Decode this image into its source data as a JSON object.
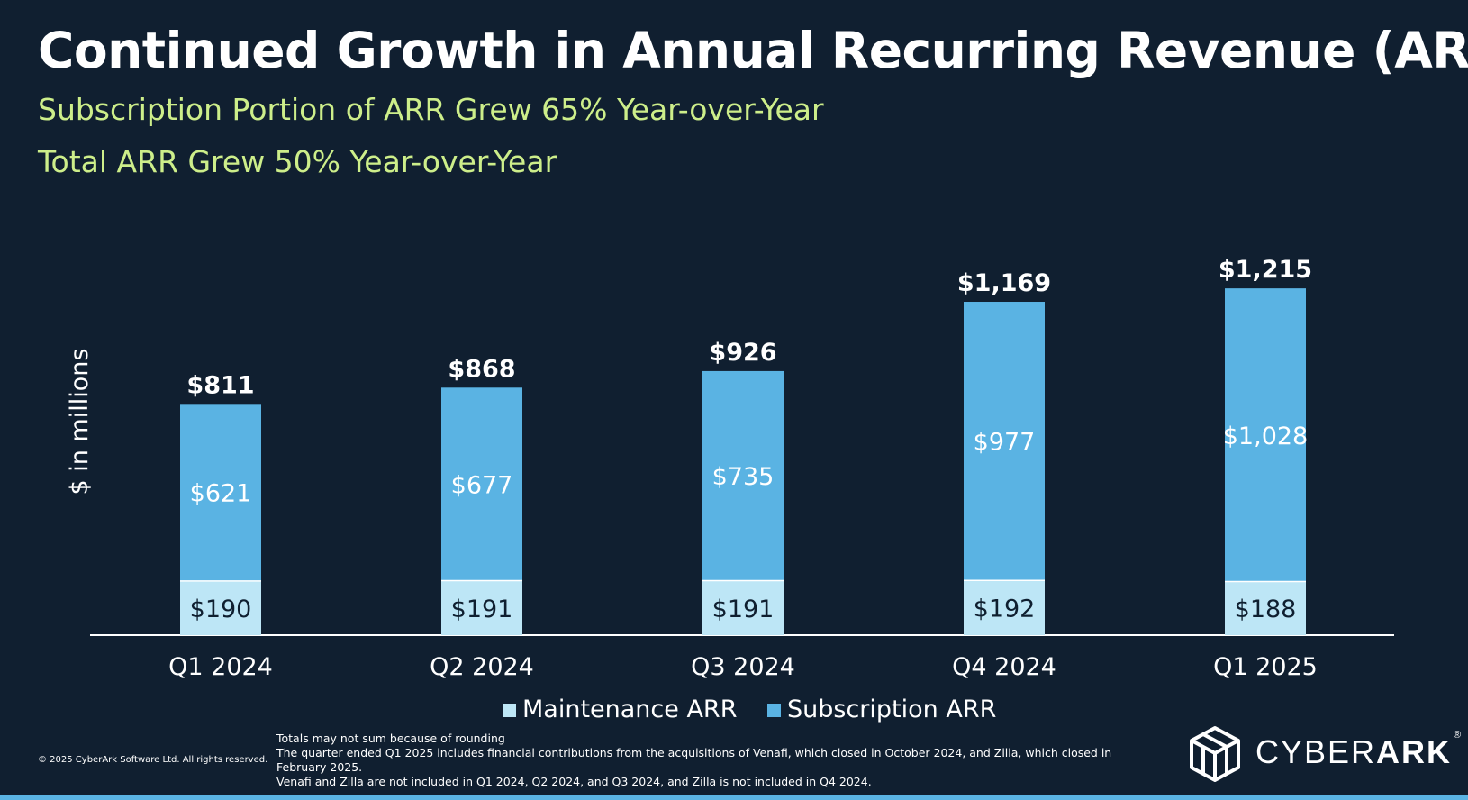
{
  "title": "Continued Growth in Annual Recurring Revenue (ARR)",
  "subtitles": [
    "Subscription Portion of ARR Grew 65% Year-over-Year",
    "Total ARR Grew 50% Year-over-Year"
  ],
  "colors": {
    "background": "#101f30",
    "maintenance": "#bde6f6",
    "subscription": "#5ab3e3",
    "subtitle": "#cdee8a"
  },
  "chart_data": {
    "type": "bar",
    "stacked": true,
    "ylabel": "$ in millions",
    "categories": [
      "Q1 2024",
      "Q2 2024",
      "Q3 2024",
      "Q4 2024",
      "Q1 2025"
    ],
    "series": [
      {
        "name": "Maintenance ARR",
        "values": [
          190,
          191,
          191,
          192,
          188
        ],
        "labels": [
          "$190",
          "$191",
          "$191",
          "$192",
          "$188"
        ]
      },
      {
        "name": "Subscription ARR",
        "values": [
          621,
          677,
          735,
          977,
          1028
        ],
        "labels": [
          "$621",
          "$677",
          "$735",
          "$977",
          "$1,028"
        ]
      }
    ],
    "totals": [
      811,
      868,
      926,
      1169,
      1215
    ],
    "total_labels": [
      "$811",
      "$868",
      "$926",
      "$1,169",
      "$1,215"
    ],
    "legend_position": "bottom-center",
    "grid": false
  },
  "footer": {
    "copyright": "© 2025 CyberArk Software Ltd. All rights reserved.",
    "notes": [
      "Totals may not sum because of rounding",
      "The quarter ended Q1 2025 includes financial contributions from the acquisitions of Venafi, which closed in October 2024, and Zilla, which closed in February 2025.",
      "Venafi and Zilla are not included in Q1 2024, Q2 2024, and Q3 2024, and Zilla is not included in Q4 2024."
    ]
  },
  "logo": {
    "text_light": "CYBER",
    "text_bold": "ARK",
    "mark": "®"
  }
}
